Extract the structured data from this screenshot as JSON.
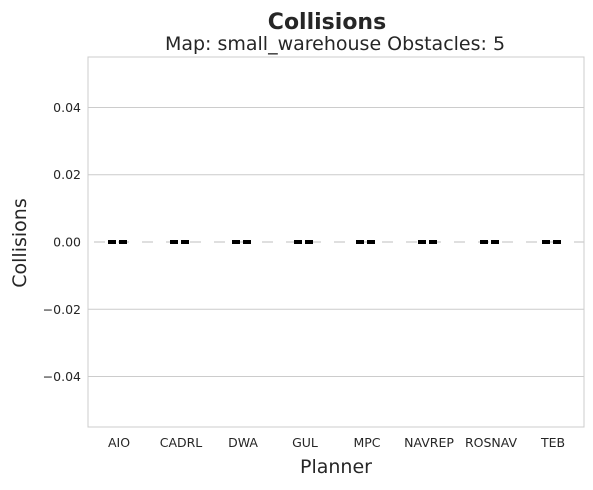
{
  "chart_data": {
    "type": "bar",
    "title": "Collisions",
    "subtitle": "Map: small_warehouse Obstacles: 5",
    "xlabel": "Planner",
    "ylabel": "Collisions",
    "categories": [
      "AIO",
      "CADRL",
      "DWA",
      "GUL",
      "MPC",
      "NAVREP",
      "ROSNAV",
      "TEB"
    ],
    "values": [
      0,
      0,
      0,
      0,
      0,
      0,
      0,
      0
    ],
    "ylim": [
      -0.055,
      0.055
    ],
    "yticks": [
      -0.04,
      -0.02,
      0.0,
      0.02,
      0.04
    ],
    "ytick_labels": [
      "−0.04",
      "−0.02",
      "0.00",
      "0.02",
      "0.04"
    ],
    "grid": true,
    "colors": {
      "marker": "#000000",
      "grid": "#cccccc",
      "frame": "#cccccc",
      "text": "#262626"
    }
  }
}
